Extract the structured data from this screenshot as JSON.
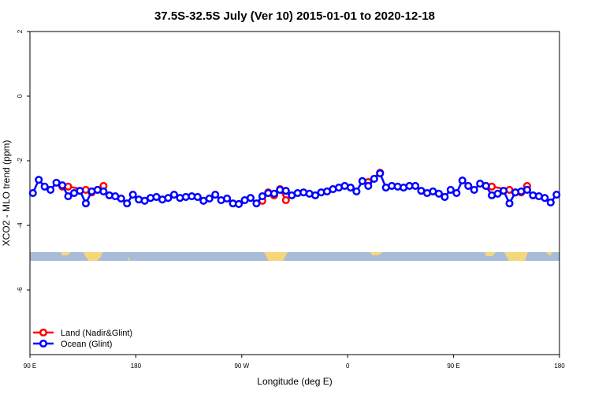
{
  "chart_data": {
    "type": "line",
    "title": "37.5S-32.5S July (Ver 10)   2015-01-01 to 2020-12-18",
    "x_label": "Longitude (deg E)",
    "y_label": "XCO2 - MLO trend (ppm)",
    "xlim": [
      90,
      540
    ],
    "ylim": [
      -8,
      2
    ],
    "xticks": [
      {
        "value": 90,
        "label": "90 E"
      },
      180,
      {
        "value": 270,
        "label": "90 W"
      },
      {
        "value": 360,
        "label": "0"
      },
      {
        "value": 450,
        "label": "90 E"
      },
      {
        "value": 540,
        "label": "180"
      }
    ],
    "yticks": [
      2,
      0,
      -2,
      -4,
      -6
    ],
    "legend": "bottomleft",
    "series": [
      {
        "name": "Land (Nadir&Glint)",
        "color": "#ff0000",
        "x": [
          117.5,
          122.5,
          137.5,
          142.5,
          147.5,
          152.5,
          220,
          287.5,
          292.5,
          297.5,
          302.5,
          307.5,
          340,
          377.5,
          387.5,
          430,
          477.5,
          482.5,
          497.5,
          502.5,
          507.5,
          512.5
        ],
        "values": [
          -2.8,
          -2.8,
          -2.9,
          -2.98,
          -2.9,
          -2.78,
          null,
          -3.24,
          -2.98,
          -3.07,
          -2.88,
          -3.22,
          null,
          -2.66,
          -2.37,
          null,
          -2.78,
          -2.8,
          -2.9,
          -2.98,
          -2.98,
          -2.78
        ]
      },
      {
        "name": "Ocean (Glint)",
        "color": "#0000ff",
        "x": [
          92.5,
          97.5,
          102.5,
          107.5,
          112.5,
          117.5,
          122.5,
          127.5,
          132.5,
          137.5,
          142.5,
          147.5,
          152.5,
          157.5,
          162.5,
          167.5,
          172.5,
          177.5,
          182.5,
          187.5,
          192.5,
          197.5,
          202.5,
          207.5,
          212.5,
          217.5,
          222.5,
          227.5,
          232.5,
          237.5,
          242.5,
          247.5,
          252.5,
          257.5,
          262.5,
          267.5,
          272.5,
          277.5,
          282.5,
          287.5,
          292.5,
          297.5,
          302.5,
          307.5,
          312.5,
          317.5,
          322.5,
          327.5,
          332.5,
          337.5,
          342.5,
          347.5,
          352.5,
          357.5,
          362.5,
          367.5,
          372.5,
          377.5,
          382.5,
          387.5,
          392.5,
          397.5,
          402.5,
          407.5,
          412.5,
          417.5,
          422.5,
          427.5,
          432.5,
          437.5,
          442.5,
          447.5,
          452.5,
          457.5,
          462.5,
          467.5,
          472.5,
          477.5,
          482.5,
          487.5,
          492.5,
          497.5,
          502.5,
          507.5,
          512.5,
          517.5,
          522.5,
          527.5,
          532.5,
          537.5
        ],
        "values": [
          -3.0,
          -2.59,
          -2.8,
          -2.9,
          -2.68,
          -2.76,
          -3.1,
          -3.0,
          -2.93,
          -3.32,
          -2.95,
          -2.9,
          -2.95,
          -3.07,
          -3.1,
          -3.17,
          -3.32,
          -3.05,
          -3.2,
          -3.24,
          -3.15,
          -3.12,
          -3.2,
          -3.15,
          -3.05,
          -3.15,
          -3.12,
          -3.1,
          -3.12,
          -3.24,
          -3.17,
          -3.05,
          -3.22,
          -3.17,
          -3.32,
          -3.34,
          -3.22,
          -3.15,
          -3.32,
          -3.1,
          -3.0,
          -3.02,
          -2.9,
          -2.93,
          -3.07,
          -3.0,
          -2.98,
          -3.02,
          -3.07,
          -2.98,
          -2.95,
          -2.88,
          -2.83,
          -2.78,
          -2.83,
          -2.95,
          -2.63,
          -2.78,
          -2.56,
          -2.39,
          -2.83,
          -2.78,
          -2.8,
          -2.83,
          -2.78,
          -2.78,
          -2.93,
          -3.0,
          -2.95,
          -3.02,
          -3.12,
          -2.9,
          -3.0,
          -2.61,
          -2.78,
          -2.9,
          -2.71,
          -2.78,
          -3.07,
          -3.02,
          -2.93,
          -3.32,
          -2.98,
          -2.95,
          -2.9,
          -3.07,
          -3.1,
          -3.15,
          -3.29,
          -3.05
        ]
      }
    ]
  }
}
